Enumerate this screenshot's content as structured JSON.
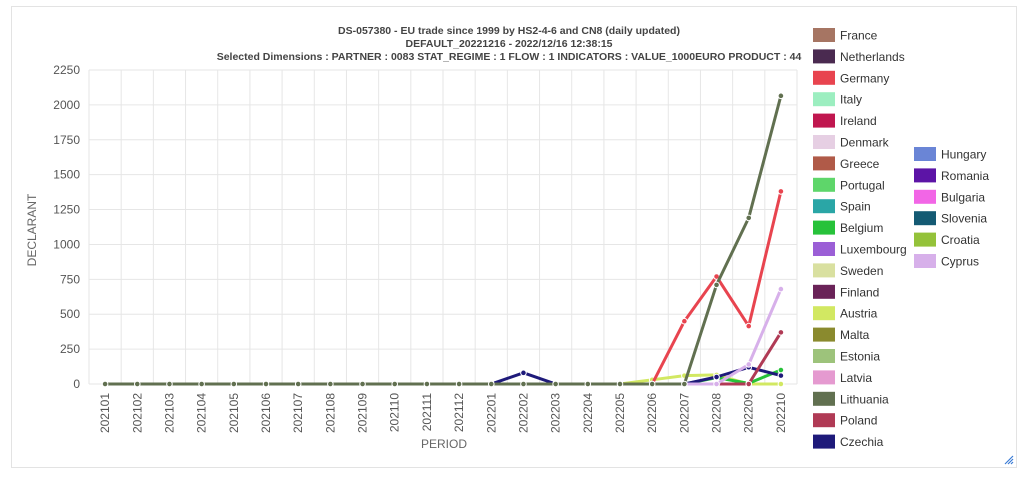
{
  "chart_data": {
    "type": "line",
    "title": "DS-057380 - EU trade since 1999 by HS2-4-6 and CN8 (daily updated)",
    "subtitle": "DEFAULT_20221216 - 2022/12/16 12:38:15",
    "subtitle2": "Selected Dimensions : PARTNER : 0083   STAT_REGIME : 1   FLOW : 1   INDICATORS : VALUE_1000EURO   PRODUCT : 44",
    "xlabel": "PERIOD",
    "ylabel": "DECLARANT",
    "ylim": [
      0,
      2250
    ],
    "yticks": [
      0,
      250,
      500,
      750,
      1000,
      1250,
      1500,
      1750,
      2000,
      2250
    ],
    "grid": true,
    "legend_position": "right",
    "x": [
      "202101",
      "202102",
      "202103",
      "202104",
      "202105",
      "202106",
      "202107",
      "202108",
      "202109",
      "202110",
      "202111",
      "202112",
      "202201",
      "202202",
      "202203",
      "202204",
      "202205",
      "202206",
      "202207",
      "202208",
      "202209",
      "202210"
    ],
    "series": [
      {
        "name": "France",
        "color": "#a67563",
        "values": [
          0,
          0,
          0,
          0,
          0,
          0,
          0,
          0,
          0,
          0,
          0,
          0,
          0,
          0,
          0,
          0,
          0,
          0,
          0,
          0,
          0,
          0
        ]
      },
      {
        "name": "Netherlands",
        "color": "#4a2a50",
        "values": [
          0,
          0,
          0,
          0,
          0,
          0,
          0,
          0,
          0,
          0,
          0,
          0,
          0,
          0,
          0,
          0,
          0,
          0,
          0,
          0,
          0,
          0
        ]
      },
      {
        "name": "Germany",
        "color": "#e8444f",
        "values": [
          0,
          0,
          0,
          0,
          0,
          0,
          0,
          0,
          0,
          0,
          0,
          0,
          0,
          0,
          0,
          0,
          0,
          0,
          450,
          770,
          415,
          1380
        ]
      },
      {
        "name": "Italy",
        "color": "#9ceec0",
        "values": [
          0,
          0,
          0,
          0,
          0,
          0,
          0,
          0,
          0,
          0,
          0,
          0,
          0,
          0,
          0,
          0,
          0,
          0,
          0,
          0,
          0,
          0
        ]
      },
      {
        "name": "Ireland",
        "color": "#c0174f",
        "values": [
          0,
          0,
          0,
          0,
          0,
          0,
          0,
          0,
          0,
          0,
          0,
          0,
          0,
          0,
          0,
          0,
          0,
          0,
          0,
          0,
          0,
          0
        ]
      },
      {
        "name": "Denmark",
        "color": "#e6cfe3",
        "values": [
          0,
          0,
          0,
          0,
          0,
          0,
          0,
          0,
          0,
          0,
          0,
          0,
          0,
          0,
          0,
          0,
          0,
          0,
          0,
          0,
          0,
          0
        ]
      },
      {
        "name": "Greece",
        "color": "#b05a48",
        "values": [
          0,
          0,
          0,
          0,
          0,
          0,
          0,
          0,
          0,
          0,
          0,
          0,
          0,
          0,
          0,
          0,
          0,
          0,
          0,
          0,
          0,
          0
        ]
      },
      {
        "name": "Portugal",
        "color": "#5ed66a",
        "values": [
          0,
          0,
          0,
          0,
          0,
          0,
          0,
          0,
          0,
          0,
          0,
          0,
          0,
          0,
          0,
          0,
          0,
          0,
          0,
          0,
          0,
          0
        ]
      },
      {
        "name": "Spain",
        "color": "#2aa6a6",
        "values": [
          0,
          0,
          0,
          0,
          0,
          0,
          0,
          0,
          0,
          0,
          0,
          0,
          0,
          0,
          0,
          0,
          0,
          0,
          0,
          0,
          0,
          0
        ]
      },
      {
        "name": "Belgium",
        "color": "#27c23a",
        "values": [
          0,
          0,
          0,
          0,
          0,
          0,
          0,
          0,
          0,
          0,
          0,
          0,
          0,
          0,
          0,
          0,
          0,
          0,
          0,
          45,
          5,
          100
        ]
      },
      {
        "name": "Luxembourg",
        "color": "#9b5fd6",
        "values": [
          0,
          0,
          0,
          0,
          0,
          0,
          0,
          0,
          0,
          0,
          0,
          0,
          0,
          0,
          0,
          0,
          0,
          0,
          0,
          0,
          0,
          0
        ]
      },
      {
        "name": "Sweden",
        "color": "#d9e0a0",
        "values": [
          0,
          0,
          0,
          0,
          0,
          0,
          0,
          0,
          0,
          0,
          0,
          0,
          0,
          0,
          0,
          0,
          0,
          0,
          0,
          0,
          0,
          0
        ]
      },
      {
        "name": "Finland",
        "color": "#6a2358",
        "values": [
          0,
          0,
          0,
          0,
          0,
          0,
          0,
          0,
          0,
          0,
          0,
          0,
          0,
          0,
          0,
          0,
          0,
          0,
          0,
          0,
          0,
          0
        ]
      },
      {
        "name": "Austria",
        "color": "#d2e862",
        "values": [
          0,
          0,
          0,
          0,
          0,
          0,
          0,
          0,
          0,
          0,
          0,
          0,
          0,
          0,
          0,
          0,
          0,
          30,
          60,
          65,
          0,
          0
        ]
      },
      {
        "name": "Malta",
        "color": "#8a8a2e",
        "values": [
          0,
          0,
          0,
          0,
          0,
          0,
          0,
          0,
          0,
          0,
          0,
          0,
          0,
          0,
          0,
          0,
          0,
          0,
          0,
          0,
          0,
          0
        ]
      },
      {
        "name": "Estonia",
        "color": "#9dc37b",
        "values": [
          0,
          0,
          0,
          0,
          0,
          0,
          0,
          0,
          0,
          0,
          0,
          0,
          0,
          0,
          0,
          0,
          0,
          0,
          0,
          0,
          0,
          0
        ]
      },
      {
        "name": "Latvia",
        "color": "#e59ad0",
        "values": [
          0,
          0,
          0,
          0,
          0,
          0,
          0,
          0,
          0,
          0,
          0,
          0,
          0,
          0,
          0,
          0,
          0,
          0,
          0,
          0,
          0,
          0
        ]
      },
      {
        "name": "Lithuania",
        "color": "#617050",
        "values": [
          0,
          0,
          0,
          0,
          0,
          0,
          0,
          0,
          0,
          0,
          0,
          0,
          0,
          0,
          0,
          0,
          0,
          0,
          0,
          710,
          1190,
          2065
        ]
      },
      {
        "name": "Poland",
        "color": "#b03a55",
        "values": [
          0,
          0,
          0,
          0,
          0,
          0,
          0,
          0,
          0,
          0,
          0,
          0,
          0,
          0,
          0,
          0,
          0,
          0,
          0,
          0,
          0,
          370
        ]
      },
      {
        "name": "Czechia",
        "color": "#1e1a7a",
        "values": [
          0,
          0,
          0,
          0,
          0,
          0,
          0,
          0,
          0,
          0,
          0,
          0,
          0,
          80,
          0,
          0,
          0,
          0,
          0,
          50,
          120,
          60
        ]
      },
      {
        "name": "Hungary",
        "color": "#6a85d6",
        "values": [
          0,
          0,
          0,
          0,
          0,
          0,
          0,
          0,
          0,
          0,
          0,
          0,
          0,
          0,
          0,
          0,
          0,
          0,
          0,
          0,
          0,
          0
        ]
      },
      {
        "name": "Romania",
        "color": "#5c14a6",
        "values": [
          0,
          0,
          0,
          0,
          0,
          0,
          0,
          0,
          0,
          0,
          0,
          0,
          0,
          0,
          0,
          0,
          0,
          0,
          0,
          0,
          0,
          0
        ]
      },
      {
        "name": "Bulgaria",
        "color": "#f266e6",
        "values": [
          0,
          0,
          0,
          0,
          0,
          0,
          0,
          0,
          0,
          0,
          0,
          0,
          0,
          0,
          0,
          0,
          0,
          0,
          0,
          0,
          0,
          0
        ]
      },
      {
        "name": "Slovenia",
        "color": "#145a73",
        "values": [
          0,
          0,
          0,
          0,
          0,
          0,
          0,
          0,
          0,
          0,
          0,
          0,
          0,
          0,
          0,
          0,
          0,
          0,
          0,
          0,
          0,
          0
        ]
      },
      {
        "name": "Croatia",
        "color": "#94c23a",
        "values": [
          0,
          0,
          0,
          0,
          0,
          0,
          0,
          0,
          0,
          0,
          0,
          0,
          0,
          0,
          0,
          0,
          0,
          0,
          0,
          0,
          0,
          0
        ]
      },
      {
        "name": "Cyprus",
        "color": "#d7b0ea",
        "values": [
          0,
          0,
          0,
          0,
          0,
          0,
          0,
          0,
          0,
          0,
          0,
          0,
          0,
          0,
          0,
          0,
          0,
          0,
          0,
          0,
          140,
          680
        ]
      }
    ]
  }
}
